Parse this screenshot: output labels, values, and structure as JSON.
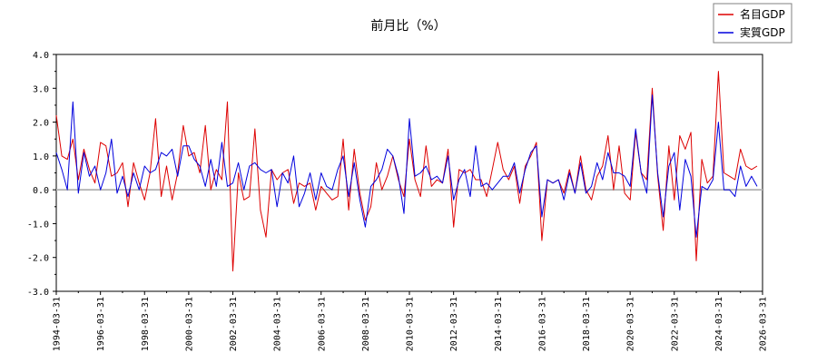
{
  "chart_data": {
    "type": "line",
    "title": "前月比（%）",
    "xlabel": "",
    "ylabel": "",
    "ylim": [
      -3.0,
      4.0
    ],
    "y_ticks": [
      "4.0",
      "3.0",
      "2.0",
      "1.0",
      "0.0",
      "-1.0",
      "-2.0",
      "-3.0"
    ],
    "x_range": [
      "1994-03-31",
      "2026-03-31"
    ],
    "x_ticks": [
      "1994-03-31",
      "1996-03-31",
      "1998-03-31",
      "2000-03-31",
      "2002-03-31",
      "2004-03-31",
      "2006-03-31",
      "2008-03-31",
      "2010-03-31",
      "2012-03-31",
      "2014-03-31",
      "2016-03-31",
      "2018-03-31",
      "2020-03-31",
      "2022-03-31",
      "2024-03-31",
      "2026-03-31"
    ],
    "legend_position": "top-right",
    "grid": "zero-line only",
    "series": [
      {
        "name": "名目GDP",
        "color": "#dd0000",
        "points": [
          [
            "1994-03-31",
            2.2
          ],
          [
            "1994-06-30",
            1.0
          ],
          [
            "1994-09-30",
            0.9
          ],
          [
            "1994-12-31",
            1.5
          ],
          [
            "1995-03-31",
            0.3
          ],
          [
            "1995-06-30",
            1.2
          ],
          [
            "1995-09-30",
            0.6
          ],
          [
            "1995-12-31",
            0.2
          ],
          [
            "1996-03-31",
            1.4
          ],
          [
            "1996-06-30",
            1.3
          ],
          [
            "1996-09-30",
            0.4
          ],
          [
            "1996-12-31",
            0.5
          ],
          [
            "1997-03-31",
            0.8
          ],
          [
            "1997-06-30",
            -0.5
          ],
          [
            "1997-09-30",
            0.8
          ],
          [
            "1997-12-31",
            0.2
          ],
          [
            "1998-03-31",
            -0.3
          ],
          [
            "1998-06-30",
            0.5
          ],
          [
            "1998-09-30",
            2.1
          ],
          [
            "1998-12-31",
            -0.2
          ],
          [
            "1999-03-31",
            0.7
          ],
          [
            "1999-06-30",
            -0.3
          ],
          [
            "1999-09-30",
            0.5
          ],
          [
            "1999-12-31",
            1.9
          ],
          [
            "2000-03-31",
            1.0
          ],
          [
            "2000-06-30",
            1.1
          ],
          [
            "2000-09-30",
            0.5
          ],
          [
            "2000-12-31",
            1.9
          ],
          [
            "2001-03-31",
            0.0
          ],
          [
            "2001-06-30",
            0.6
          ],
          [
            "2001-09-30",
            0.3
          ],
          [
            "2001-12-31",
            2.6
          ],
          [
            "2002-03-31",
            -2.4
          ],
          [
            "2002-06-30",
            0.5
          ],
          [
            "2002-09-30",
            -0.3
          ],
          [
            "2002-12-31",
            -0.2
          ],
          [
            "2003-03-31",
            1.8
          ],
          [
            "2003-06-30",
            -0.6
          ],
          [
            "2003-09-30",
            -1.4
          ],
          [
            "2003-12-31",
            0.6
          ],
          [
            "2004-03-31",
            0.3
          ],
          [
            "2004-06-30",
            0.5
          ],
          [
            "2004-09-30",
            0.6
          ],
          [
            "2004-12-31",
            -0.4
          ],
          [
            "2005-03-31",
            0.2
          ],
          [
            "2005-06-30",
            0.1
          ],
          [
            "2005-09-30",
            0.2
          ],
          [
            "2005-12-31",
            -0.6
          ],
          [
            "2006-03-31",
            0.1
          ],
          [
            "2006-06-30",
            -0.1
          ],
          [
            "2006-09-30",
            -0.3
          ],
          [
            "2006-12-31",
            -0.2
          ],
          [
            "2007-03-31",
            1.5
          ],
          [
            "2007-06-30",
            -0.6
          ],
          [
            "2007-09-30",
            1.2
          ],
          [
            "2007-12-31",
            -0.1
          ],
          [
            "2008-03-31",
            -0.9
          ],
          [
            "2008-06-30",
            -0.5
          ],
          [
            "2008-09-30",
            0.8
          ],
          [
            "2008-12-31",
            0.0
          ],
          [
            "2009-03-31",
            0.4
          ],
          [
            "2009-06-30",
            1.0
          ],
          [
            "2009-09-30",
            0.3
          ],
          [
            "2009-12-31",
            -0.2
          ],
          [
            "2010-03-31",
            1.5
          ],
          [
            "2010-06-30",
            0.3
          ],
          [
            "2010-09-30",
            -0.2
          ],
          [
            "2010-12-31",
            1.3
          ],
          [
            "2011-03-31",
            0.1
          ],
          [
            "2011-06-30",
            0.3
          ],
          [
            "2011-09-30",
            0.2
          ],
          [
            "2011-12-31",
            1.2
          ],
          [
            "2012-03-31",
            -1.1
          ],
          [
            "2012-06-30",
            0.6
          ],
          [
            "2012-09-30",
            0.5
          ],
          [
            "2012-12-31",
            0.6
          ],
          [
            "2013-03-31",
            0.3
          ],
          [
            "2013-06-30",
            0.3
          ],
          [
            "2013-09-30",
            -0.2
          ],
          [
            "2013-12-31",
            0.6
          ],
          [
            "2014-03-31",
            1.4
          ],
          [
            "2014-06-30",
            0.6
          ],
          [
            "2014-09-30",
            0.3
          ],
          [
            "2014-12-31",
            0.7
          ],
          [
            "2015-03-31",
            -0.4
          ],
          [
            "2015-06-30",
            0.7
          ],
          [
            "2015-09-30",
            1.0
          ],
          [
            "2015-12-31",
            1.4
          ],
          [
            "2016-03-31",
            -1.5
          ],
          [
            "2016-06-30",
            0.3
          ],
          [
            "2016-09-30",
            0.2
          ],
          [
            "2016-12-31",
            0.3
          ],
          [
            "2017-03-31",
            -0.1
          ],
          [
            "2017-06-30",
            0.6
          ],
          [
            "2017-09-30",
            -0.1
          ],
          [
            "2017-12-31",
            1.0
          ],
          [
            "2018-03-31",
            0.0
          ],
          [
            "2018-06-30",
            -0.3
          ],
          [
            "2018-09-30",
            0.4
          ],
          [
            "2018-12-31",
            0.7
          ],
          [
            "2019-03-31",
            1.6
          ],
          [
            "2019-06-30",
            0.0
          ],
          [
            "2019-09-30",
            1.3
          ],
          [
            "2019-12-31",
            -0.1
          ],
          [
            "2020-03-31",
            -0.3
          ],
          [
            "2020-06-30",
            1.7
          ],
          [
            "2020-09-30",
            0.5
          ],
          [
            "2020-12-31",
            0.3
          ],
          [
            "2021-03-31",
            3.0
          ],
          [
            "2021-06-30",
            0.4
          ],
          [
            "2021-09-30",
            -1.2
          ],
          [
            "2021-12-31",
            1.3
          ],
          [
            "2022-03-31",
            -0.3
          ],
          [
            "2022-06-30",
            1.6
          ],
          [
            "2022-09-30",
            1.2
          ],
          [
            "2022-12-31",
            1.7
          ],
          [
            "2023-03-31",
            -2.1
          ],
          [
            "2023-06-30",
            0.9
          ],
          [
            "2023-09-30",
            0.2
          ],
          [
            "2023-12-31",
            0.4
          ],
          [
            "2024-03-31",
            3.5
          ],
          [
            "2024-06-30",
            0.5
          ],
          [
            "2024-09-30",
            0.4
          ],
          [
            "2024-12-31",
            0.3
          ],
          [
            "2025-03-31",
            1.2
          ],
          [
            "2025-06-30",
            0.7
          ],
          [
            "2025-09-30",
            0.6
          ],
          [
            "2025-12-31",
            0.7
          ]
        ]
      },
      {
        "name": "実質GDP",
        "color": "#0000dd",
        "points": [
          [
            "1994-03-31",
            1.1
          ],
          [
            "1994-06-30",
            0.6
          ],
          [
            "1994-09-30",
            0.0
          ],
          [
            "1994-12-31",
            2.6
          ],
          [
            "1995-03-31",
            -0.1
          ],
          [
            "1995-06-30",
            1.1
          ],
          [
            "1995-09-30",
            0.4
          ],
          [
            "1995-12-31",
            0.7
          ],
          [
            "1996-03-31",
            0.0
          ],
          [
            "1996-06-30",
            0.5
          ],
          [
            "1996-09-30",
            1.5
          ],
          [
            "1996-12-31",
            -0.1
          ],
          [
            "1997-03-31",
            0.4
          ],
          [
            "1997-06-30",
            -0.2
          ],
          [
            "1997-09-30",
            0.5
          ],
          [
            "1997-12-31",
            0.0
          ],
          [
            "1998-03-31",
            0.7
          ],
          [
            "1998-06-30",
            0.5
          ],
          [
            "1998-09-30",
            0.6
          ],
          [
            "1998-12-31",
            1.1
          ],
          [
            "1999-03-31",
            1.0
          ],
          [
            "1999-06-30",
            1.2
          ],
          [
            "1999-09-30",
            0.4
          ],
          [
            "1999-12-31",
            1.3
          ],
          [
            "2000-03-31",
            1.3
          ],
          [
            "2000-06-30",
            0.9
          ],
          [
            "2000-09-30",
            0.7
          ],
          [
            "2000-12-31",
            0.1
          ],
          [
            "2001-03-31",
            0.9
          ],
          [
            "2001-06-30",
            0.1
          ],
          [
            "2001-09-30",
            1.4
          ],
          [
            "2001-12-31",
            0.1
          ],
          [
            "2002-03-31",
            0.2
          ],
          [
            "2002-06-30",
            0.8
          ],
          [
            "2002-09-30",
            0.0
          ],
          [
            "2002-12-31",
            0.7
          ],
          [
            "2003-03-31",
            0.8
          ],
          [
            "2003-06-30",
            0.6
          ],
          [
            "2003-09-30",
            0.5
          ],
          [
            "2003-12-31",
            0.6
          ],
          [
            "2004-03-31",
            -0.5
          ],
          [
            "2004-06-30",
            0.5
          ],
          [
            "2004-09-30",
            0.2
          ],
          [
            "2004-12-31",
            1.0
          ],
          [
            "2005-03-31",
            -0.5
          ],
          [
            "2005-06-30",
            -0.1
          ],
          [
            "2005-09-30",
            0.5
          ],
          [
            "2005-12-31",
            -0.3
          ],
          [
            "2006-03-31",
            0.5
          ],
          [
            "2006-06-30",
            0.1
          ],
          [
            "2006-09-30",
            0.0
          ],
          [
            "2006-12-31",
            0.6
          ],
          [
            "2007-03-31",
            1.0
          ],
          [
            "2007-06-30",
            -0.2
          ],
          [
            "2007-09-30",
            0.8
          ],
          [
            "2007-12-31",
            -0.3
          ],
          [
            "2008-03-31",
            -1.1
          ],
          [
            "2008-06-30",
            0.1
          ],
          [
            "2008-09-30",
            0.3
          ],
          [
            "2008-12-31",
            0.6
          ],
          [
            "2009-03-31",
            1.2
          ],
          [
            "2009-06-30",
            1.0
          ],
          [
            "2009-09-30",
            0.4
          ],
          [
            "2009-12-31",
            -0.7
          ],
          [
            "2010-03-31",
            2.1
          ],
          [
            "2010-06-30",
            0.4
          ],
          [
            "2010-09-30",
            0.5
          ],
          [
            "2010-12-31",
            0.7
          ],
          [
            "2011-03-31",
            0.3
          ],
          [
            "2011-06-30",
            0.4
          ],
          [
            "2011-09-30",
            0.2
          ],
          [
            "2011-12-31",
            1.0
          ],
          [
            "2012-03-31",
            -0.3
          ],
          [
            "2012-06-30",
            0.3
          ],
          [
            "2012-09-30",
            0.6
          ],
          [
            "2012-12-31",
            -0.2
          ],
          [
            "2013-03-31",
            1.3
          ],
          [
            "2013-06-30",
            0.1
          ],
          [
            "2013-09-30",
            0.2
          ],
          [
            "2013-12-31",
            0.0
          ],
          [
            "2014-03-31",
            0.2
          ],
          [
            "2014-06-30",
            0.4
          ],
          [
            "2014-09-30",
            0.4
          ],
          [
            "2014-12-31",
            0.8
          ],
          [
            "2015-03-31",
            -0.1
          ],
          [
            "2015-06-30",
            0.6
          ],
          [
            "2015-09-30",
            1.1
          ],
          [
            "2015-12-31",
            1.3
          ],
          [
            "2016-03-31",
            -0.8
          ],
          [
            "2016-06-30",
            0.3
          ],
          [
            "2016-09-30",
            0.2
          ],
          [
            "2016-12-31",
            0.3
          ],
          [
            "2017-03-31",
            -0.3
          ],
          [
            "2017-06-30",
            0.5
          ],
          [
            "2017-09-30",
            -0.1
          ],
          [
            "2017-12-31",
            0.8
          ],
          [
            "2018-03-31",
            -0.1
          ],
          [
            "2018-06-30",
            0.1
          ],
          [
            "2018-09-30",
            0.8
          ],
          [
            "2018-12-31",
            0.3
          ],
          [
            "2019-03-31",
            1.1
          ],
          [
            "2019-06-30",
            0.5
          ],
          [
            "2019-09-30",
            0.5
          ],
          [
            "2019-12-31",
            0.4
          ],
          [
            "2020-03-31",
            0.1
          ],
          [
            "2020-06-30",
            1.8
          ],
          [
            "2020-09-30",
            0.5
          ],
          [
            "2020-12-31",
            -0.1
          ],
          [
            "2021-03-31",
            2.8
          ],
          [
            "2021-06-30",
            0.5
          ],
          [
            "2021-09-30",
            -0.8
          ],
          [
            "2021-12-31",
            0.7
          ],
          [
            "2022-03-31",
            1.1
          ],
          [
            "2022-06-30",
            -0.6
          ],
          [
            "2022-09-30",
            0.9
          ],
          [
            "2022-12-31",
            0.4
          ],
          [
            "2023-03-31",
            -1.4
          ],
          [
            "2023-06-30",
            0.1
          ],
          [
            "2023-09-30",
            0.0
          ],
          [
            "2023-12-31",
            0.3
          ],
          [
            "2024-03-31",
            2.0
          ],
          [
            "2024-06-30",
            0.0
          ],
          [
            "2024-09-30",
            0.0
          ],
          [
            "2024-12-31",
            -0.2
          ],
          [
            "2025-03-31",
            0.7
          ],
          [
            "2025-06-30",
            0.1
          ],
          [
            "2025-09-30",
            0.4
          ],
          [
            "2025-12-31",
            0.1
          ]
        ]
      }
    ]
  }
}
